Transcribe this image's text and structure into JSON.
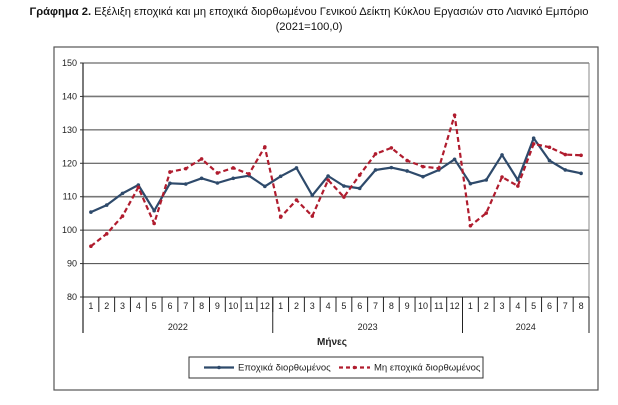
{
  "title": {
    "label": "Γράφημα 2.",
    "text": "Εξέλιξη εποχικά και μη εποχικά διορθωμένου Γενικού Δείκτη Κύκλου Εργασιών στο Λιανικό Εμπόριο",
    "subtitle": "(2021=100,0)"
  },
  "chart_data": {
    "type": "line",
    "title": "Γράφημα 2. Εξέλιξη εποχικά και μη εποχικά διορθωμένου Γενικού Δείκτη Κύκλου Εργασιών στο Λιανικό Εμπόριο (2021=100,0)",
    "xlabel": "Μήνες",
    "ylabel": "",
    "ylim": [
      80,
      150
    ],
    "yticks": [
      80,
      90,
      100,
      110,
      120,
      130,
      140,
      150
    ],
    "grid": true,
    "legend_position": "bottom",
    "years": [
      {
        "label": "2022",
        "months": 12
      },
      {
        "label": "2023",
        "months": 12
      },
      {
        "label": "2024",
        "months": 8
      }
    ],
    "categories": [
      "1",
      "2",
      "3",
      "4",
      "5",
      "6",
      "7",
      "8",
      "9",
      "10",
      "11",
      "12",
      "1",
      "2",
      "3",
      "4",
      "5",
      "6",
      "7",
      "8",
      "9",
      "10",
      "11",
      "12",
      "1",
      "2",
      "3",
      "4",
      "5",
      "6",
      "7",
      "8"
    ],
    "series": [
      {
        "name": "Εποχικά διορθωμένος",
        "color": "#2e4a6b",
        "style": "solid",
        "values": [
          105.4,
          107.5,
          111.0,
          113.5,
          105.8,
          114.0,
          113.8,
          115.5,
          114.1,
          115.5,
          116.3,
          113.1,
          116.1,
          118.6,
          110.4,
          116.2,
          113.2,
          112.5,
          118.0,
          118.7,
          117.7,
          116.0,
          118.0,
          121.2,
          113.9,
          115.0,
          122.5,
          115.0,
          127.5,
          120.8,
          118.0,
          117.0
        ]
      },
      {
        "name": "Μη εποχικά διορθωμένος",
        "color": "#b01c2e",
        "style": "dashed",
        "values": [
          95.2,
          98.9,
          104.2,
          112.8,
          102.0,
          117.4,
          118.4,
          121.3,
          117.1,
          118.6,
          116.8,
          124.9,
          103.9,
          109.0,
          104.2,
          115.0,
          109.9,
          116.5,
          122.8,
          124.6,
          120.8,
          119.0,
          118.5,
          134.4,
          101.3,
          105.1,
          115.9,
          113.2,
          125.8,
          124.8,
          122.6,
          122.4
        ]
      }
    ]
  }
}
